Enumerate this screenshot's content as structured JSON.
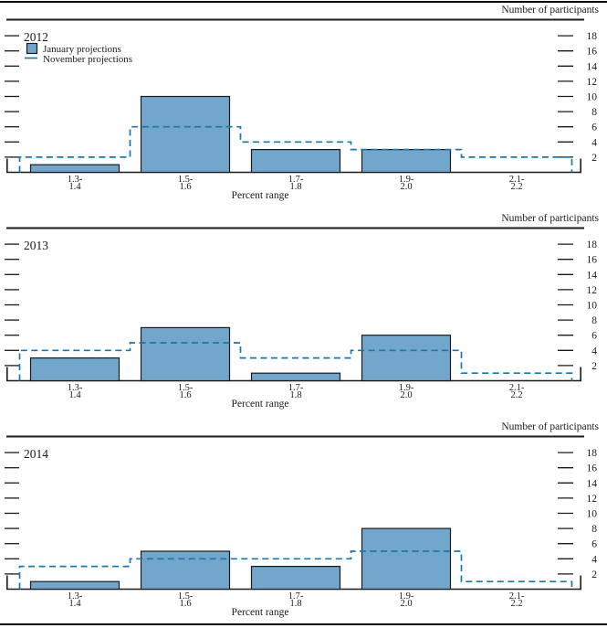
{
  "figure": {
    "right_axis_label": "Number of participants",
    "x_axis_label": "Percent range",
    "legend": {
      "january_label": "January projections",
      "november_label": "November projections"
    },
    "colors": {
      "bar_fill": "#72a6ca",
      "bar_border": "#1a1a1a",
      "dashed_line": "#1878ad",
      "axis": "#1a1a1a",
      "text": "#1a1a1a"
    }
  },
  "chart_data": [
    {
      "type": "bar",
      "title": "2012",
      "categories": [
        "1.3-1.4",
        "1.5-1.6",
        "1.7-1.8",
        "1.9-2.0",
        "2.1-2.2"
      ],
      "series": [
        {
          "name": "January projections",
          "style": "bar",
          "values": [
            1,
            10,
            3,
            3,
            0
          ]
        },
        {
          "name": "November projections",
          "style": "dashed-step",
          "values": [
            2,
            6,
            4,
            3,
            2
          ]
        }
      ],
      "xlabel": "Percent range",
      "ylabel_right": "Number of participants",
      "yticks": [
        2,
        4,
        6,
        8,
        10,
        12,
        14,
        16,
        18
      ],
      "ylim": [
        0,
        19
      ],
      "grid": false,
      "legend_visible": true,
      "legend_position": "top-left"
    },
    {
      "type": "bar",
      "title": "2013",
      "categories": [
        "1.3-1.4",
        "1.5-1.6",
        "1.7-1.8",
        "1.9-2.0",
        "2.1-2.2"
      ],
      "series": [
        {
          "name": "January projections",
          "style": "bar",
          "values": [
            3,
            7,
            1,
            6,
            0
          ]
        },
        {
          "name": "November projections",
          "style": "dashed-step",
          "values": [
            4,
            5,
            3,
            4,
            1
          ]
        }
      ],
      "xlabel": "Percent range",
      "ylabel_right": "Number of participants",
      "yticks": [
        2,
        4,
        6,
        8,
        10,
        12,
        14,
        16,
        18
      ],
      "ylim": [
        0,
        19
      ],
      "grid": false,
      "legend_visible": false,
      "legend_position": "top-left"
    },
    {
      "type": "bar",
      "title": "2014",
      "categories": [
        "1.3-1.4",
        "1.5-1.6",
        "1.7-1.8",
        "1.9-2.0",
        "2.1-2.2"
      ],
      "series": [
        {
          "name": "January projections",
          "style": "bar",
          "values": [
            1,
            5,
            3,
            8,
            0
          ]
        },
        {
          "name": "November projections",
          "style": "dashed-step",
          "values": [
            3,
            4,
            4,
            5,
            1
          ]
        }
      ],
      "xlabel": "Percent range",
      "ylabel_right": "Number of participants",
      "yticks": [
        2,
        4,
        6,
        8,
        10,
        12,
        14,
        16,
        18
      ],
      "ylim": [
        0,
        19
      ],
      "grid": false,
      "legend_visible": false,
      "legend_position": "top-left"
    }
  ]
}
